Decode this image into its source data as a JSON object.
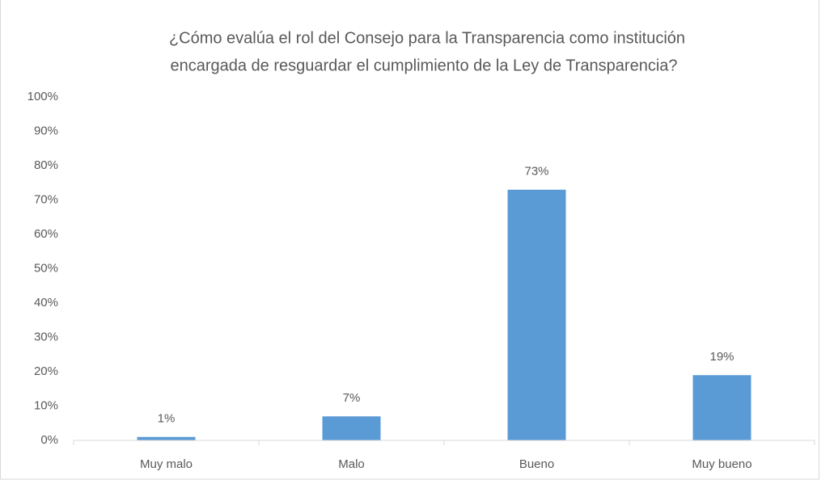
{
  "chart_data": {
    "type": "bar",
    "title": [
      "¿Cómo evalúa el rol del Consejo para la Transparencia como institución",
      "encargada de resguardar el cumplimiento de la Ley de Transparencia?"
    ],
    "categories": [
      "Muy malo",
      "Malo",
      "Bueno",
      "Muy bueno"
    ],
    "values": [
      1,
      7,
      73,
      19
    ],
    "value_labels": [
      "1%",
      "7%",
      "73%",
      "19%"
    ],
    "color": "#5b9bd5",
    "ylim": [
      0,
      100
    ],
    "yticks": [
      {
        "value": 0,
        "label": "0%"
      },
      {
        "value": 10,
        "label": "10%"
      },
      {
        "value": 20,
        "label": "20%"
      },
      {
        "value": 30,
        "label": "30%"
      },
      {
        "value": 40,
        "label": "40%"
      },
      {
        "value": 50,
        "label": "50%"
      },
      {
        "value": 60,
        "label": "60%"
      },
      {
        "value": 70,
        "label": "70%"
      },
      {
        "value": 80,
        "label": "80%"
      },
      {
        "value": 90,
        "label": "90%"
      },
      {
        "value": 100,
        "label": "100%"
      }
    ],
    "grid": false
  }
}
